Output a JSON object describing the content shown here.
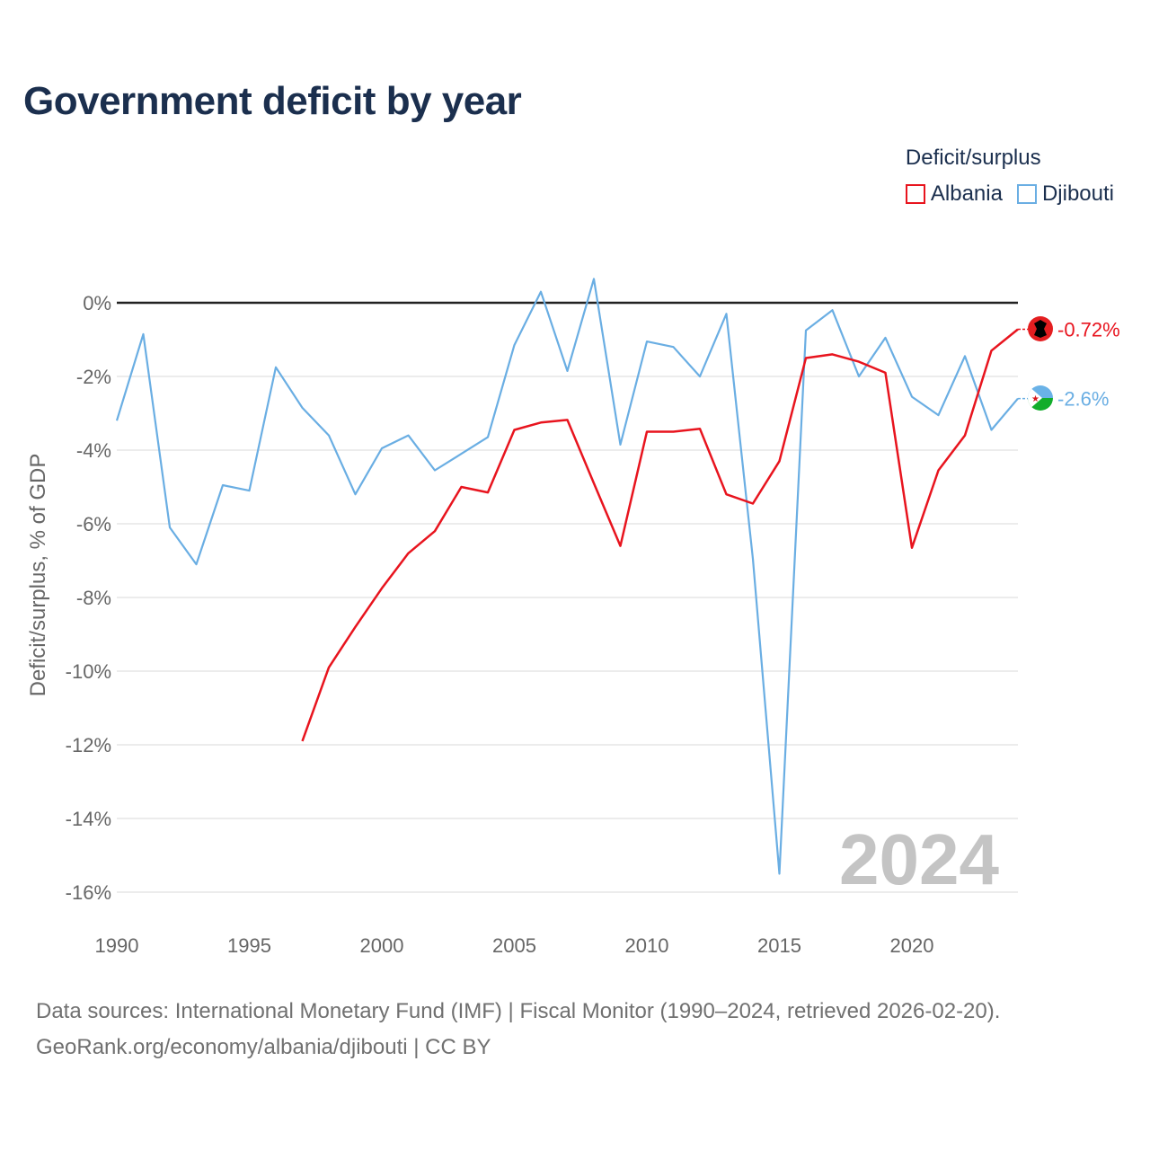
{
  "title": "Government deficit by year",
  "legend": {
    "title": "Deficit/surplus",
    "items": [
      {
        "label": "Albania",
        "color": "#e8141e"
      },
      {
        "label": "Djibouti",
        "color": "#6aaee3"
      }
    ]
  },
  "footer": {
    "line1": "Data sources: International Monetary Fund (IMF) | Fiscal Monitor (1990–2024, retrieved 2026-02-20).",
    "line2": "GeoRank.org/economy/albania/djibouti | CC BY"
  },
  "chart_data": {
    "type": "line",
    "title": "Government deficit by year",
    "xlabel": "",
    "ylabel": "Deficit/surplus, % of GDP",
    "xlim": [
      1990,
      2024
    ],
    "ylim": [
      -16.5,
      1
    ],
    "x_ticks": [
      1990,
      1995,
      2000,
      2005,
      2010,
      2015,
      2020
    ],
    "y_ticks": [
      0,
      -2,
      -4,
      -6,
      -8,
      -10,
      -12,
      -14,
      -16
    ],
    "y_tick_labels": [
      "0%",
      "-2%",
      "-4%",
      "-6%",
      "-8%",
      "-10%",
      "-12%",
      "-14%",
      "-16%"
    ],
    "watermark_year": "2024",
    "grid": true,
    "legend_position": "top-right",
    "series": [
      {
        "name": "Albania",
        "color": "#e8141e",
        "end_label": "-0.72%",
        "x": [
          1997,
          1998,
          1999,
          2000,
          2001,
          2002,
          2003,
          2004,
          2005,
          2006,
          2007,
          2008,
          2009,
          2010,
          2011,
          2012,
          2013,
          2014,
          2015,
          2016,
          2017,
          2018,
          2019,
          2020,
          2021,
          2022,
          2023,
          2024
        ],
        "values": [
          -11.9,
          -9.9,
          -8.8,
          -7.75,
          -6.8,
          -6.2,
          -5.0,
          -5.15,
          -3.45,
          -3.25,
          -3.18,
          -4.9,
          -6.6,
          -3.5,
          -3.5,
          -3.42,
          -5.2,
          -5.45,
          -4.3,
          -1.5,
          -1.4,
          -1.6,
          -1.9,
          -6.65,
          -4.55,
          -3.6,
          -1.3,
          -0.72
        ]
      },
      {
        "name": "Djibouti",
        "color": "#6aaee3",
        "end_label": "-2.6%",
        "x": [
          1990,
          1991,
          1992,
          1993,
          1994,
          1995,
          1996,
          1997,
          1998,
          1999,
          2000,
          2001,
          2002,
          2003,
          2004,
          2005,
          2006,
          2007,
          2008,
          2009,
          2010,
          2011,
          2012,
          2013,
          2014,
          2015,
          2016,
          2017,
          2018,
          2019,
          2020,
          2021,
          2022,
          2023,
          2024
        ],
        "values": [
          -3.2,
          -0.85,
          -6.1,
          -7.1,
          -4.95,
          -5.1,
          -1.75,
          -2.85,
          -3.6,
          -5.2,
          -3.95,
          -3.6,
          -4.55,
          -4.1,
          -3.65,
          -1.15,
          0.3,
          -1.85,
          0.65,
          -3.85,
          -1.05,
          -1.2,
          -2.0,
          -0.3,
          -6.95,
          -15.5,
          -0.75,
          -0.2,
          -2.0,
          -0.95,
          -2.55,
          -3.05,
          -1.45,
          -3.45,
          -2.6
        ]
      }
    ]
  }
}
